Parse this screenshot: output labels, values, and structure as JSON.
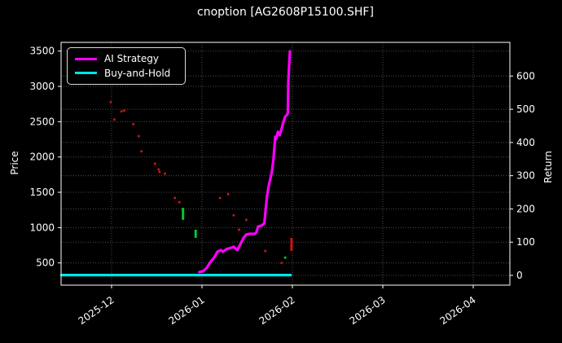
{
  "window": {
    "title": "cnoption [AG2608P15100.SHF]"
  },
  "chart_data": {
    "type": "line",
    "title": "cnoption [AG2608P15100.SHF]",
    "background": "#000000",
    "foreground": "#ffffff",
    "grid": "on",
    "grid_color": "#4d4d4d",
    "x_axis": {
      "tick_labels": [
        "2025-12",
        "2026-01",
        "2026-02",
        "2026-03",
        "2026-04"
      ],
      "label_rotation_deg": -35,
      "unit": "months_from_2025-12"
    },
    "left_axis": {
      "label": "Price",
      "ticks": [
        500,
        1000,
        1500,
        2000,
        2500,
        3000,
        3500
      ],
      "range": [
        185,
        3625
      ]
    },
    "right_axis": {
      "label": "Return",
      "ticks": [
        0,
        100,
        200,
        300,
        400,
        500,
        600
      ],
      "range": [
        -29,
        701
      ]
    },
    "legend": {
      "position": "upper-left",
      "entries": [
        {
          "label": "AI Strategy",
          "color": "#ff00ff"
        },
        {
          "label": "Buy-and-Hold",
          "color": "#00e5e5"
        }
      ]
    },
    "series": [
      {
        "name": "AI Strategy",
        "axis": "right",
        "color": "#ff00ff",
        "width": 3.2,
        "points": [
          [
            0.97,
            10
          ],
          [
            1.01,
            12
          ],
          [
            1.05,
            22
          ],
          [
            1.09,
            39
          ],
          [
            1.14,
            56
          ],
          [
            1.17,
            71
          ],
          [
            1.21,
            76
          ],
          [
            1.23,
            71
          ],
          [
            1.27,
            79
          ],
          [
            1.32,
            83
          ],
          [
            1.35,
            86
          ],
          [
            1.39,
            76
          ],
          [
            1.42,
            91
          ],
          [
            1.46,
            113
          ],
          [
            1.49,
            123
          ],
          [
            1.53,
            125
          ],
          [
            1.58,
            125
          ],
          [
            1.6,
            128
          ],
          [
            1.62,
            147
          ],
          [
            1.66,
            150
          ],
          [
            1.69,
            157
          ],
          [
            1.7,
            186
          ],
          [
            1.72,
            240
          ],
          [
            1.74,
            272
          ],
          [
            1.77,
            307
          ],
          [
            1.79,
            348
          ],
          [
            1.81,
            417
          ],
          [
            1.82,
            410
          ],
          [
            1.84,
            432
          ],
          [
            1.86,
            422
          ],
          [
            1.88,
            441
          ],
          [
            1.9,
            461
          ],
          [
            1.92,
            478
          ],
          [
            1.94,
            483
          ],
          [
            1.95,
            488
          ],
          [
            1.955,
            584
          ],
          [
            1.964,
            633
          ],
          [
            1.973,
            674
          ]
        ]
      },
      {
        "name": "Buy-and-Hold",
        "axis": "right",
        "color": "#00e5e5",
        "width": 3.2,
        "points": [
          [
            -0.555,
            1
          ],
          [
            1.98,
            1
          ]
        ]
      }
    ],
    "price_marks": {
      "description": "daily option price ticks, left axis",
      "down_color": "#cc1414",
      "up_color": "#00c832",
      "down_points": [
        [
          -0.01,
          2780
        ],
        [
          0.03,
          2530
        ],
        [
          0.11,
          2645
        ],
        [
          0.14,
          2657
        ],
        [
          0.24,
          2465
        ],
        [
          0.3,
          2295
        ],
        [
          0.33,
          2080
        ],
        [
          0.48,
          1905
        ],
        [
          0.52,
          1825
        ],
        [
          0.53,
          1790
        ],
        [
          0.59,
          1765
        ],
        [
          0.7,
          1420
        ],
        [
          0.75,
          1360
        ],
        [
          1.2,
          1420
        ],
        [
          1.29,
          1475
        ],
        [
          1.35,
          1175
        ],
        [
          1.41,
          970
        ],
        [
          1.49,
          1110
        ],
        [
          1.7,
          670
        ],
        [
          1.88,
          500
        ]
      ],
      "up_points": [
        [
          1.92,
          575
        ]
      ],
      "down_bars": [
        [
          1.99,
          855,
          670
        ]
      ],
      "up_bars": [
        [
          0.79,
          1280,
          1110
        ],
        [
          0.93,
          970,
          855
        ]
      ]
    }
  }
}
